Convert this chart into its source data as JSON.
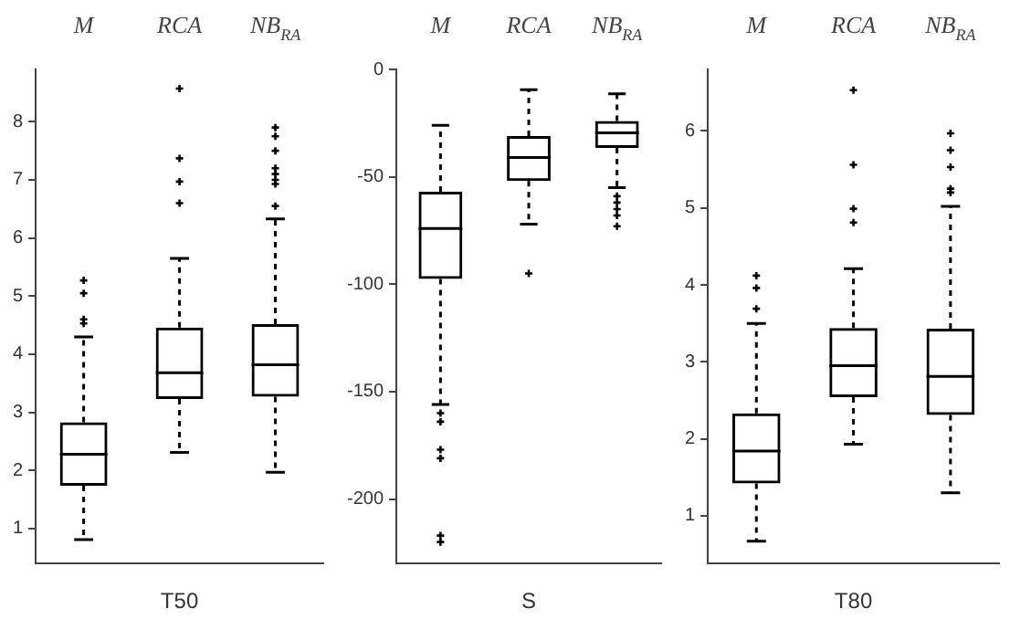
{
  "chart_data": [
    {
      "type": "box",
      "xlabel": "T50",
      "categories": [
        "M",
        "RCA",
        "NB$_{RA}$"
      ],
      "color": "#000000",
      "marker": "cross",
      "grid": false,
      "ylim": [
        0.4,
        8.9
      ],
      "yticks": [
        1,
        2,
        3,
        4,
        5,
        6,
        7,
        8
      ],
      "boxes": [
        {
          "low": 0.81,
          "q1": 1.74,
          "median": 2.28,
          "q3": 2.83,
          "high": 4.3,
          "outliers": [
            5.27,
            5.05,
            4.6,
            4.53
          ]
        },
        {
          "low": 2.31,
          "q1": 3.23,
          "median": 3.68,
          "q3": 4.46,
          "high": 5.65,
          "outliers": [
            8.57,
            7.37,
            6.97,
            6.6
          ]
        },
        {
          "low": 1.97,
          "q1": 3.27,
          "median": 3.82,
          "q3": 4.52,
          "high": 6.33,
          "outliers": [
            7.9,
            7.75,
            7.5,
            7.2,
            7.1,
            7.0,
            6.93,
            6.55
          ]
        }
      ]
    },
    {
      "type": "box",
      "xlabel": "S",
      "categories": [
        "M",
        "RCA",
        "NB$_{RA}$"
      ],
      "color": "#000000",
      "marker": "cross",
      "grid": false,
      "ylim": [
        -230,
        0
      ],
      "yticks": [
        0,
        -50,
        -100,
        -150,
        -200
      ],
      "boxes": [
        {
          "low": -156,
          "q1": -97.5,
          "median": -74,
          "q3": -57,
          "high": -26,
          "outliers": [
            -160,
            -164,
            -177,
            -181,
            -217,
            -220
          ]
        },
        {
          "low": -72,
          "q1": -52,
          "median": -41,
          "q3": -31,
          "high": -9.5,
          "outliers": [
            -95
          ]
        },
        {
          "low": -55,
          "q1": -36.5,
          "median": -29.5,
          "q3": -24,
          "high": -11.4,
          "outliers": [
            -59,
            -62,
            -65,
            -68,
            -73
          ]
        }
      ]
    },
    {
      "type": "box",
      "xlabel": "T80",
      "categories": [
        "M",
        "RCA",
        "NB$_{RA}$"
      ],
      "color": "#000000",
      "marker": "cross",
      "grid": false,
      "ylim": [
        0.38,
        6.8
      ],
      "yticks": [
        1,
        2,
        3,
        4,
        5,
        6
      ],
      "boxes": [
        {
          "low": 0.67,
          "q1": 1.42,
          "median": 1.84,
          "q3": 2.33,
          "high": 3.5,
          "outliers": [
            4.12,
            3.96,
            3.69
          ]
        },
        {
          "low": 1.93,
          "q1": 2.54,
          "median": 2.95,
          "q3": 3.44,
          "high": 4.21,
          "outliers": [
            6.53,
            5.56,
            4.99,
            4.81
          ]
        },
        {
          "low": 1.3,
          "q1": 2.31,
          "median": 2.81,
          "q3": 3.43,
          "high": 5.02,
          "outliers": [
            5.97,
            5.75,
            5.53,
            5.25,
            5.2
          ]
        }
      ]
    }
  ]
}
